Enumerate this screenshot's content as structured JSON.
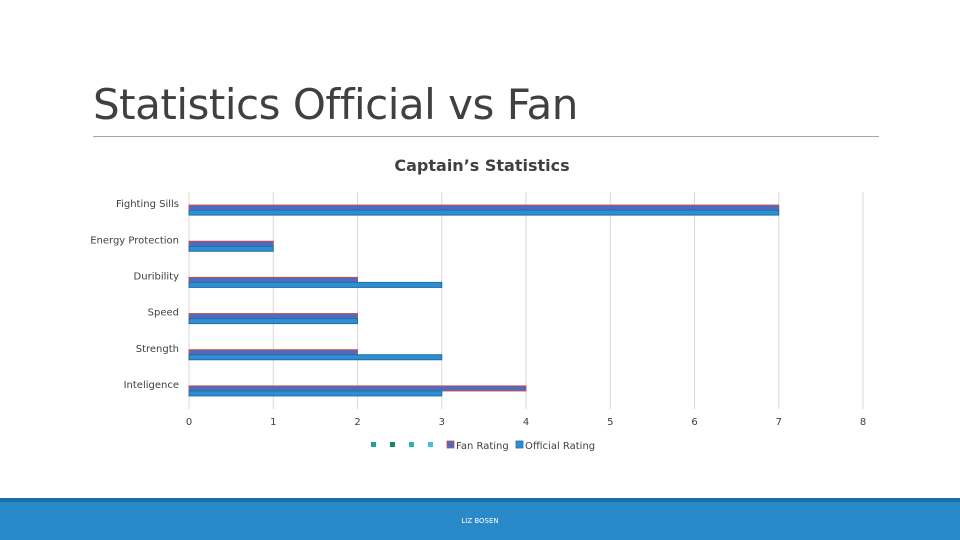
{
  "slide": {
    "title": "Statistics Official vs Fan",
    "footer": "LIZ BOSEN"
  },
  "colors": {
    "fan": "#4f6bbf",
    "fan_outline": "#c0504d",
    "official": "#2d8fd1",
    "official_outline": "#1f6fa6",
    "legend_dot_1": "#1fa397",
    "legend_dot_2": "#168a5a",
    "legend_dot_3": "#2fb4a8",
    "legend_dot_4": "#45c0d8"
  },
  "chart_data": {
    "type": "bar",
    "orientation": "horizontal",
    "title": "Captain’s Statistics",
    "categories": [
      "Fighting Sills",
      "Energy Protection",
      "Duribility",
      "Speed",
      "Strength",
      "Inteligence"
    ],
    "series": [
      {
        "name": "Fan Rating",
        "values": [
          7,
          1,
          2,
          2,
          2,
          4
        ]
      },
      {
        "name": "Official Rating",
        "values": [
          7,
          1,
          3,
          2,
          3,
          3
        ]
      }
    ],
    "xlim": [
      0,
      8
    ],
    "xticks": [
      "0",
      "1",
      "2",
      "3",
      "4",
      "5",
      "6",
      "7",
      "8"
    ],
    "grid": true,
    "legend": "bottom"
  }
}
